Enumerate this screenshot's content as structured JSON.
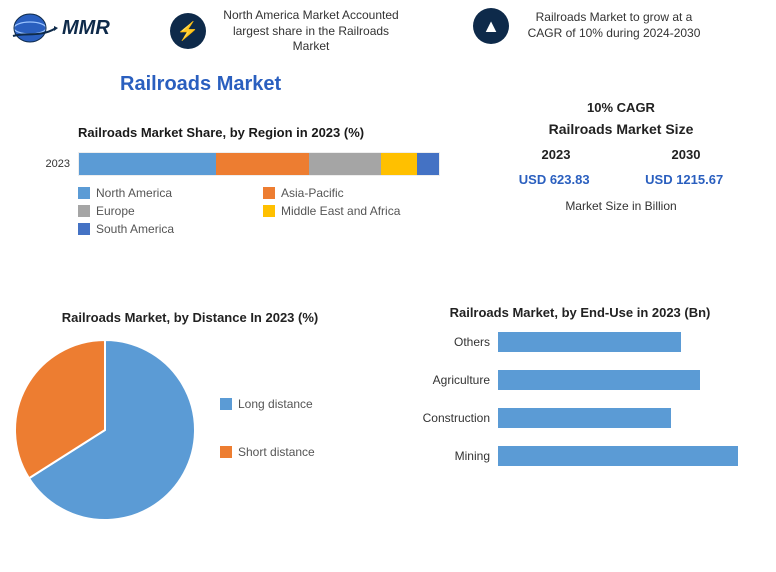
{
  "header": {
    "logo_text": "MMR",
    "info1": "North America Market Accounted largest share in the Railroads Market",
    "info2": "Railroads Market to grow at a CAGR of 10% during 2024-2030"
  },
  "main_title": "Railroads Market",
  "colors": {
    "blue": "#5b9bd5",
    "orange": "#ed7d31",
    "grey": "#a5a5a5",
    "gold": "#ffc000",
    "dkblue": "#4472c4",
    "navy": "#0e2a4a",
    "title_blue": "#2a5fbf"
  },
  "stacked": {
    "title": "Railroads Market Share, by Region in 2023 (%)",
    "ylabel": "2023",
    "segments": [
      {
        "label": "North America",
        "value": 38,
        "color": "#5b9bd5"
      },
      {
        "label": "Asia-Pacific",
        "value": 26,
        "color": "#ed7d31"
      },
      {
        "label": "Europe",
        "value": 20,
        "color": "#a5a5a5"
      },
      {
        "label": "Middle East and Africa",
        "value": 10,
        "color": "#ffc000"
      },
      {
        "label": "South America",
        "value": 6,
        "color": "#4472c4"
      }
    ]
  },
  "market_size": {
    "cagr": "10% CAGR",
    "heading": "Railroads Market Size",
    "year_a": "2023",
    "year_b": "2030",
    "val_a": "USD 623.83",
    "val_b": "USD 1215.67",
    "unit": "Market Size in Billion"
  },
  "pie": {
    "title": "Railroads Market, by Distance In 2023 (%)",
    "slices": [
      {
        "label": "Long distance",
        "value": 66,
        "color": "#5b9bd5"
      },
      {
        "label": "Short distance",
        "value": 34,
        "color": "#ed7d31"
      }
    ],
    "radius": 90,
    "stroke": "#ffffff"
  },
  "hbar": {
    "title": "Railroads Market, by End-Use in 2023 (Bn)",
    "color": "#5b9bd5",
    "xmax": 260,
    "rows": [
      {
        "cat": "Others",
        "value": 190
      },
      {
        "cat": "Agriculture",
        "value": 210
      },
      {
        "cat": "Construction",
        "value": 180
      },
      {
        "cat": "Mining",
        "value": 250
      }
    ]
  }
}
